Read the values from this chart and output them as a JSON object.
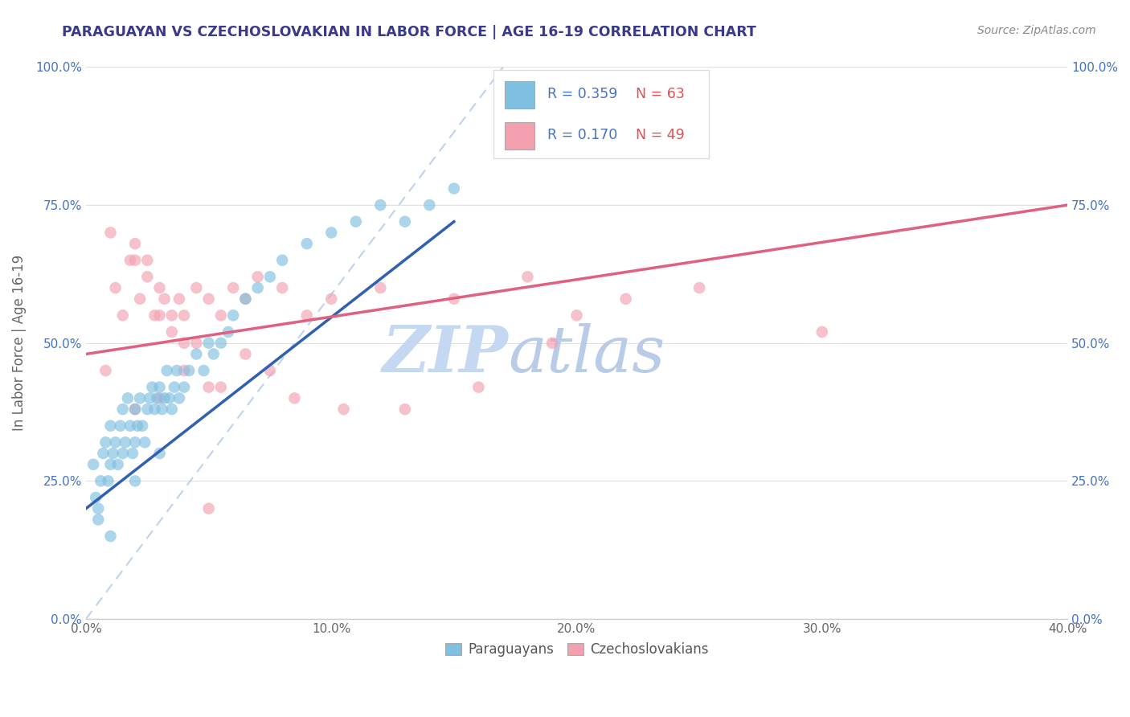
{
  "title": "PARAGUAYAN VS CZECHOSLOVAKIAN IN LABOR FORCE | AGE 16-19 CORRELATION CHART",
  "source": "Source: ZipAtlas.com",
  "xlabel_vals": [
    0.0,
    10.0,
    20.0,
    30.0,
    40.0
  ],
  "ylabel_vals": [
    0.0,
    25.0,
    50.0,
    75.0,
    100.0
  ],
  "xmin": 0.0,
  "xmax": 40.0,
  "ymin": 0.0,
  "ymax": 100.0,
  "blue_color": "#7fbfdf",
  "pink_color": "#f4a0b0",
  "blue_line_color": "#3060b0",
  "pink_line_color": "#e06080",
  "ref_line_color": "#b0c8e8",
  "ylabel": "In Labor Force | Age 16-19",
  "legend_r_blue": "R = 0.359",
  "legend_n_blue": "N = 63",
  "legend_r_pink": "R = 0.170",
  "legend_n_pink": "N = 49",
  "legend_label_blue": "Paraguayans",
  "legend_label_pink": "Czechoslovakians",
  "title_color": "#3a3a8c",
  "tick_color": "#4472c4",
  "source_color": "#888888",
  "watermark_zip": "ZIP",
  "watermark_atlas": "atlas",
  "watermark_color_zip": "#c8d8f0",
  "watermark_color_atlas": "#b8c8e8",
  "blue_R": 0.359,
  "pink_R": 0.17,
  "blue_N": 63,
  "pink_N": 49,
  "paraguayan_x": [
    0.3,
    0.4,
    0.5,
    0.6,
    0.7,
    0.8,
    0.9,
    1.0,
    1.0,
    1.1,
    1.2,
    1.3,
    1.4,
    1.5,
    1.5,
    1.6,
    1.7,
    1.8,
    1.9,
    2.0,
    2.0,
    2.1,
    2.2,
    2.3,
    2.4,
    2.5,
    2.6,
    2.7,
    2.8,
    2.9,
    3.0,
    3.1,
    3.2,
    3.3,
    3.4,
    3.5,
    3.6,
    3.7,
    3.8,
    4.0,
    4.2,
    4.5,
    4.8,
    5.0,
    5.2,
    5.5,
    5.8,
    6.0,
    6.5,
    7.0,
    7.5,
    8.0,
    9.0,
    10.0,
    11.0,
    12.0,
    13.0,
    14.0,
    15.0,
    0.5,
    1.0,
    2.0,
    3.0
  ],
  "paraguayan_y": [
    28,
    22,
    18,
    25,
    30,
    32,
    25,
    35,
    28,
    30,
    32,
    28,
    35,
    30,
    38,
    32,
    40,
    35,
    30,
    38,
    32,
    35,
    40,
    35,
    32,
    38,
    40,
    42,
    38,
    40,
    42,
    38,
    40,
    45,
    40,
    38,
    42,
    45,
    40,
    42,
    45,
    48,
    45,
    50,
    48,
    50,
    52,
    55,
    58,
    60,
    62,
    65,
    68,
    70,
    72,
    75,
    72,
    75,
    78,
    20,
    15,
    25,
    30
  ],
  "czechoslovakian_x": [
    0.8,
    1.2,
    1.5,
    1.8,
    2.0,
    2.2,
    2.5,
    2.8,
    3.0,
    3.2,
    3.5,
    3.8,
    4.0,
    4.5,
    5.0,
    5.5,
    6.0,
    6.5,
    7.0,
    8.0,
    9.0,
    10.0,
    12.0,
    15.0,
    18.0,
    20.0,
    22.0,
    25.0,
    30.0,
    2.0,
    3.0,
    4.0,
    5.0,
    2.5,
    3.5,
    4.5,
    5.5,
    6.5,
    7.5,
    8.5,
    10.5,
    13.0,
    16.0,
    19.0,
    1.0,
    2.0,
    3.0,
    4.0,
    5.0
  ],
  "czechoslovakian_y": [
    45,
    60,
    55,
    65,
    68,
    58,
    62,
    55,
    60,
    58,
    52,
    58,
    55,
    60,
    58,
    55,
    60,
    58,
    62,
    60,
    55,
    58,
    60,
    58,
    62,
    55,
    58,
    60,
    52,
    38,
    40,
    45,
    42,
    65,
    55,
    50,
    42,
    48,
    45,
    40,
    38,
    38,
    42,
    50,
    70,
    65,
    55,
    50,
    20
  ],
  "blue_line_x0": 0.0,
  "blue_line_x1": 15.0,
  "blue_line_y0": 20.0,
  "blue_line_y1": 72.0,
  "pink_line_x0": 0.0,
  "pink_line_x1": 40.0,
  "pink_line_y0": 48.0,
  "pink_line_y1": 75.0
}
